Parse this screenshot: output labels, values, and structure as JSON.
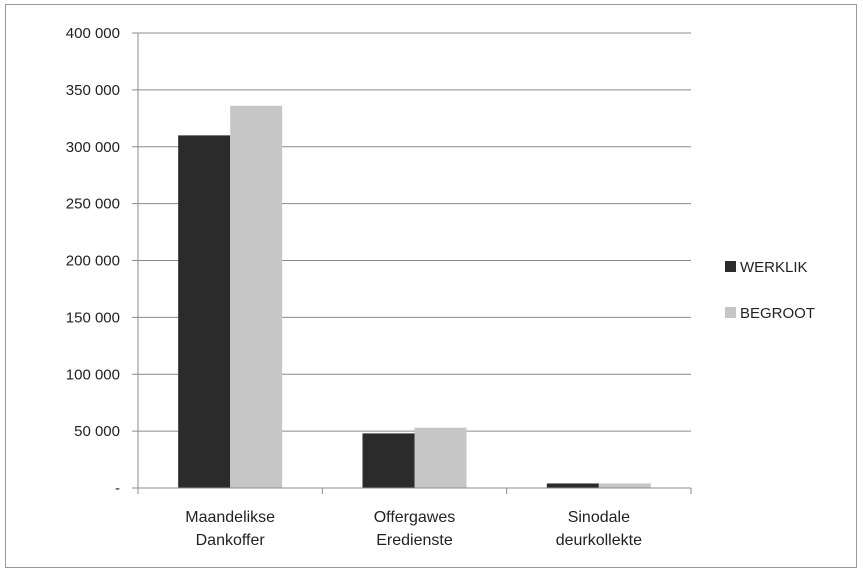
{
  "chart_data": {
    "type": "bar",
    "title": "",
    "xlabel": "",
    "ylabel": "",
    "categories": [
      [
        "Maandelikse",
        "Dankoffer"
      ],
      [
        "Offergawes",
        "Eredienste"
      ],
      [
        "Sinodale",
        "deurkollekte"
      ]
    ],
    "series": [
      {
        "name": "WERKLIK",
        "color": "#2b2b2b",
        "values": [
          310000,
          48000,
          4000
        ]
      },
      {
        "name": "BEGROOT",
        "color": "#c6c6c6",
        "values": [
          336000,
          53000,
          4000
        ]
      }
    ],
    "ylim": [
      0,
      400000
    ],
    "yticks": [
      0,
      50000,
      100000,
      150000,
      200000,
      250000,
      300000,
      350000,
      400000
    ],
    "ytick_labels": [
      "-",
      "50 000",
      "100 000",
      "150 000",
      "200 000",
      "250 000",
      "300 000",
      "350 000",
      "400 000"
    ],
    "grid": true,
    "legend_position": "right"
  }
}
